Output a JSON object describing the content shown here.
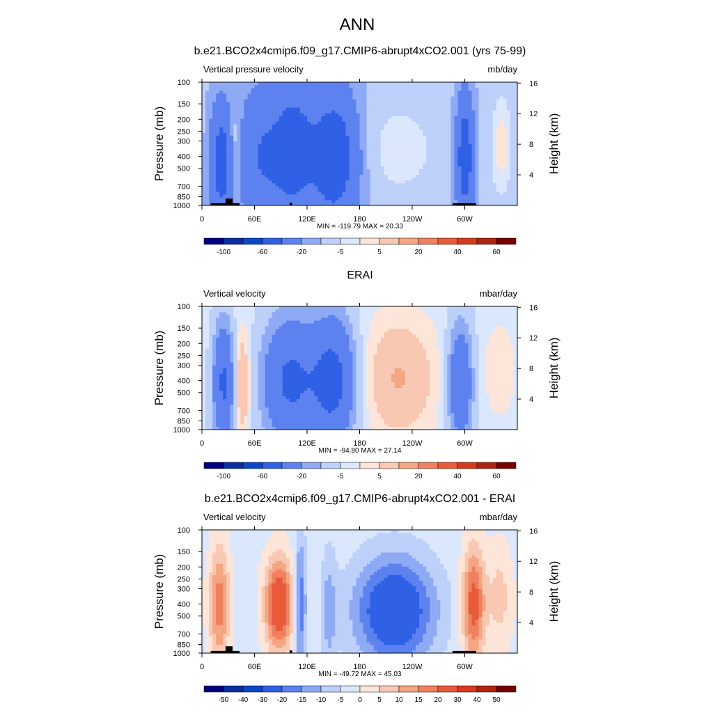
{
  "figure": {
    "title": "ANN"
  },
  "axes_common": {
    "ylabel_left": "Pressure (mb)",
    "ylabel_right": "Height (km)",
    "pressure_ticks": [
      100,
      150,
      200,
      250,
      300,
      400,
      500,
      700,
      850,
      1000
    ],
    "height_ticks": [
      4,
      8,
      12,
      16
    ],
    "longitude_ticks": [
      {
        "lon": 0,
        "label": "0"
      },
      {
        "lon": 60,
        "label": "60E"
      },
      {
        "lon": 120,
        "label": "120E"
      },
      {
        "lon": 180,
        "label": "180"
      },
      {
        "lon": 240,
        "label": "120W"
      },
      {
        "lon": 300,
        "label": "60W"
      }
    ],
    "xlim": [
      0,
      360
    ],
    "ylim": [
      1000,
      100
    ]
  },
  "chart_data": [
    {
      "type": "heatmap",
      "title": "b.e21.BCO2x4cmip6.f09_g17.CMIP6-abrupt4xCO2.001 (yrs 75-99)",
      "left_label": "Vertical pressure velocity",
      "units": "mb/day",
      "stats_text": "MIN = -119.79  MAX =  20.33",
      "min": -119.79,
      "max": 20.33,
      "colorbar_labels": [
        "-100",
        "-60",
        "-20",
        "-5",
        "5",
        "20",
        "40",
        "60"
      ],
      "field": {
        "base": -11,
        "features": [
          {
            "lon": 22,
            "p": 450,
            "amp": -40,
            "wlon": 9,
            "wp": 0.75
          },
          {
            "lon": 38,
            "p": 350,
            "amp": 14,
            "wlon": 5,
            "wp": 0.6
          },
          {
            "lon": 70,
            "p": 400,
            "amp": -30,
            "wlon": 20,
            "wp": 0.9
          },
          {
            "lon": 105,
            "p": 350,
            "amp": -38,
            "wlon": 14,
            "wp": 0.8
          },
          {
            "lon": 150,
            "p": 400,
            "amp": -48,
            "wlon": 20,
            "wp": 0.85
          },
          {
            "lon": 225,
            "p": 350,
            "amp": 9,
            "wlon": 35,
            "wp": 0.7
          },
          {
            "lon": 300,
            "p": 400,
            "amp": -45,
            "wlon": 7,
            "wp": 0.8
          },
          {
            "lon": 342,
            "p": 330,
            "amp": 14,
            "wlon": 9,
            "wp": 0.7
          }
        ]
      },
      "topography": [
        {
          "lon0": 10,
          "lon1": 43,
          "p": 960
        },
        {
          "lon0": 27,
          "lon1": 35,
          "p": 880
        },
        {
          "lon0": 100,
          "lon1": 103,
          "p": 950
        },
        {
          "lon0": 286,
          "lon1": 313,
          "p": 960
        }
      ]
    },
    {
      "type": "heatmap",
      "title": "ERAI",
      "left_label": "Vertical velocity",
      "units": "mbar/day",
      "stats_text": "MIN = -94.80  MAX =  27.14",
      "min": -94.8,
      "max": 27.14,
      "colorbar_labels": [
        "-100",
        "-60",
        "-20",
        "-5",
        "5",
        "20",
        "40",
        "60"
      ],
      "field": {
        "base": -3,
        "features": [
          {
            "lon": 25,
            "p": 420,
            "amp": -40,
            "wlon": 9,
            "wp": 0.8
          },
          {
            "lon": 45,
            "p": 420,
            "amp": 20,
            "wlon": 7,
            "wp": 0.7
          },
          {
            "lon": 100,
            "p": 400,
            "amp": -40,
            "wlon": 22,
            "wp": 0.85
          },
          {
            "lon": 150,
            "p": 400,
            "amp": -44,
            "wlon": 18,
            "wp": 0.85
          },
          {
            "lon": 225,
            "p": 380,
            "amp": 16,
            "wlon": 30,
            "wp": 0.8
          },
          {
            "lon": 295,
            "p": 420,
            "amp": -35,
            "wlon": 10,
            "wp": 0.8
          },
          {
            "lon": 340,
            "p": 330,
            "amp": 6,
            "wlon": 15,
            "wp": 0.7
          }
        ]
      },
      "topography": []
    },
    {
      "type": "heatmap",
      "title": "b.e21.BCO2x4cmip6.f09_g17.CMIP6-abrupt4xCO2.001 - ERAI",
      "left_label": "Vertical velocity",
      "units": "mbar/day",
      "stats_text": "MIN = -49.72  MAX =  45.03",
      "min": -49.72,
      "max": 45.03,
      "colorbar_labels": [
        "-50",
        "-40",
        "-30",
        "-20",
        "-15",
        "-10",
        "-5",
        "0",
        "5",
        "10",
        "15",
        "20",
        "30",
        "40",
        "50"
      ],
      "field": {
        "base": -2,
        "features": [
          {
            "lon": 20,
            "p": 400,
            "amp": 20,
            "wlon": 8,
            "wp": 0.8
          },
          {
            "lon": 88,
            "p": 400,
            "amp": 32,
            "wlon": 11,
            "wp": 0.6
          },
          {
            "lon": 112,
            "p": 400,
            "amp": -18,
            "wlon": 5,
            "wp": 0.9
          },
          {
            "lon": 145,
            "p": 450,
            "amp": -10,
            "wlon": 6,
            "wp": 0.8
          },
          {
            "lon": 220,
            "p": 450,
            "amp": -28,
            "wlon": 32,
            "wp": 0.7
          },
          {
            "lon": 310,
            "p": 400,
            "amp": 26,
            "wlon": 9,
            "wp": 0.75
          },
          {
            "lon": 340,
            "p": 350,
            "amp": 9,
            "wlon": 10,
            "wp": 0.7
          }
        ]
      },
      "topography": [
        {
          "lon0": 10,
          "lon1": 43,
          "p": 960
        },
        {
          "lon0": 27,
          "lon1": 35,
          "p": 880
        },
        {
          "lon0": 100,
          "lon1": 103,
          "p": 950
        },
        {
          "lon0": 286,
          "lon1": 313,
          "p": 960
        }
      ]
    }
  ],
  "colors": {
    "scale": [
      "#000080",
      "#0a2fa0",
      "#0b46c8",
      "#2f60e6",
      "#5d82f0",
      "#8eaaf5",
      "#bcd0fa",
      "#dbe7fc",
      "#fde5d9",
      "#f8c8b2",
      "#f4a582",
      "#f08060",
      "#e85b3a",
      "#d63a1e",
      "#b02414",
      "#7a0000"
    ],
    "topography": "#000000"
  }
}
